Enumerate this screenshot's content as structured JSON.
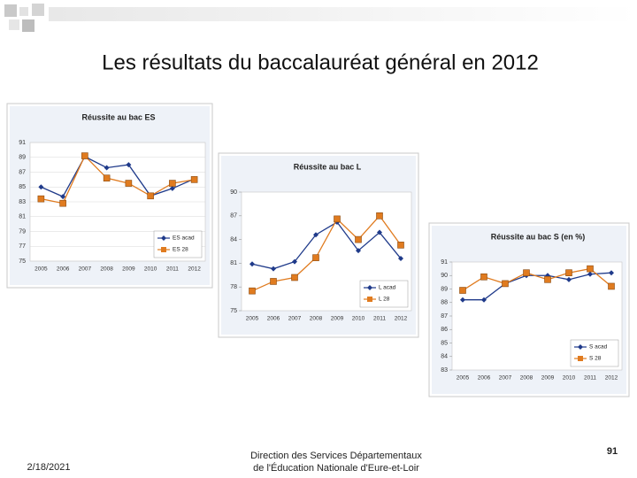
{
  "slide": {
    "title": "Les résultats du baccalauréat général en 2012",
    "date": "2/18/2021",
    "footer_line1": "Direction des Services Départementaux",
    "footer_line2": "de l'Éducation Nationale d'Eure-et-Loir",
    "page_number": "91"
  },
  "chart_data": [
    {
      "type": "line",
      "title": "Réussite au bac ES",
      "categories": [
        "2005",
        "2006",
        "2007",
        "2008",
        "2009",
        "2010",
        "2011",
        "2012"
      ],
      "series": [
        {
          "name": "ES acad",
          "color": "#1f3a8a",
          "values": [
            85,
            83.7,
            89.1,
            87.6,
            88,
            83.8,
            84.8,
            86.1
          ]
        },
        {
          "name": "ES 28",
          "color": "#e07b1f",
          "values": [
            83.4,
            82.8,
            89.2,
            86.2,
            85.5,
            83.8,
            85.5,
            86
          ]
        }
      ],
      "ylim": [
        75,
        91
      ],
      "yticks": [
        75,
        77,
        79,
        81,
        83,
        85,
        87,
        89,
        91
      ],
      "grid": true
    },
    {
      "type": "line",
      "title": "Réussite au bac L",
      "categories": [
        "2005",
        "2006",
        "2007",
        "2008",
        "2009",
        "2010",
        "2011",
        "2012"
      ],
      "series": [
        {
          "name": "L acad",
          "color": "#1f3a8a",
          "values": [
            80.9,
            80.3,
            81.2,
            84.6,
            86.2,
            82.6,
            84.9,
            81.6
          ]
        },
        {
          "name": "L 28",
          "color": "#e07b1f",
          "values": [
            77.5,
            78.7,
            79.2,
            81.7,
            86.6,
            84,
            87,
            83.3
          ]
        }
      ],
      "ylim": [
        75,
        90
      ],
      "yticks": [
        75,
        78,
        81,
        84,
        87,
        90
      ],
      "grid": false
    },
    {
      "type": "line",
      "title": "Réussite au bac S (en %)",
      "categories": [
        "2005",
        "2006",
        "2007",
        "2008",
        "2009",
        "2010",
        "2011",
        "2012"
      ],
      "series": [
        {
          "name": "S acad",
          "color": "#1f3a8a",
          "values": [
            88.2,
            88.2,
            89.4,
            90,
            90,
            89.7,
            90.1,
            90.2
          ]
        },
        {
          "name": "S 28",
          "color": "#e07b1f",
          "values": [
            88.9,
            89.9,
            89.4,
            90.2,
            89.7,
            90.2,
            90.5,
            89.2
          ]
        }
      ],
      "ylim": [
        83,
        91
      ],
      "yticks": [
        83,
        84,
        85,
        86,
        87,
        88,
        89,
        90,
        91
      ],
      "grid": false
    }
  ]
}
